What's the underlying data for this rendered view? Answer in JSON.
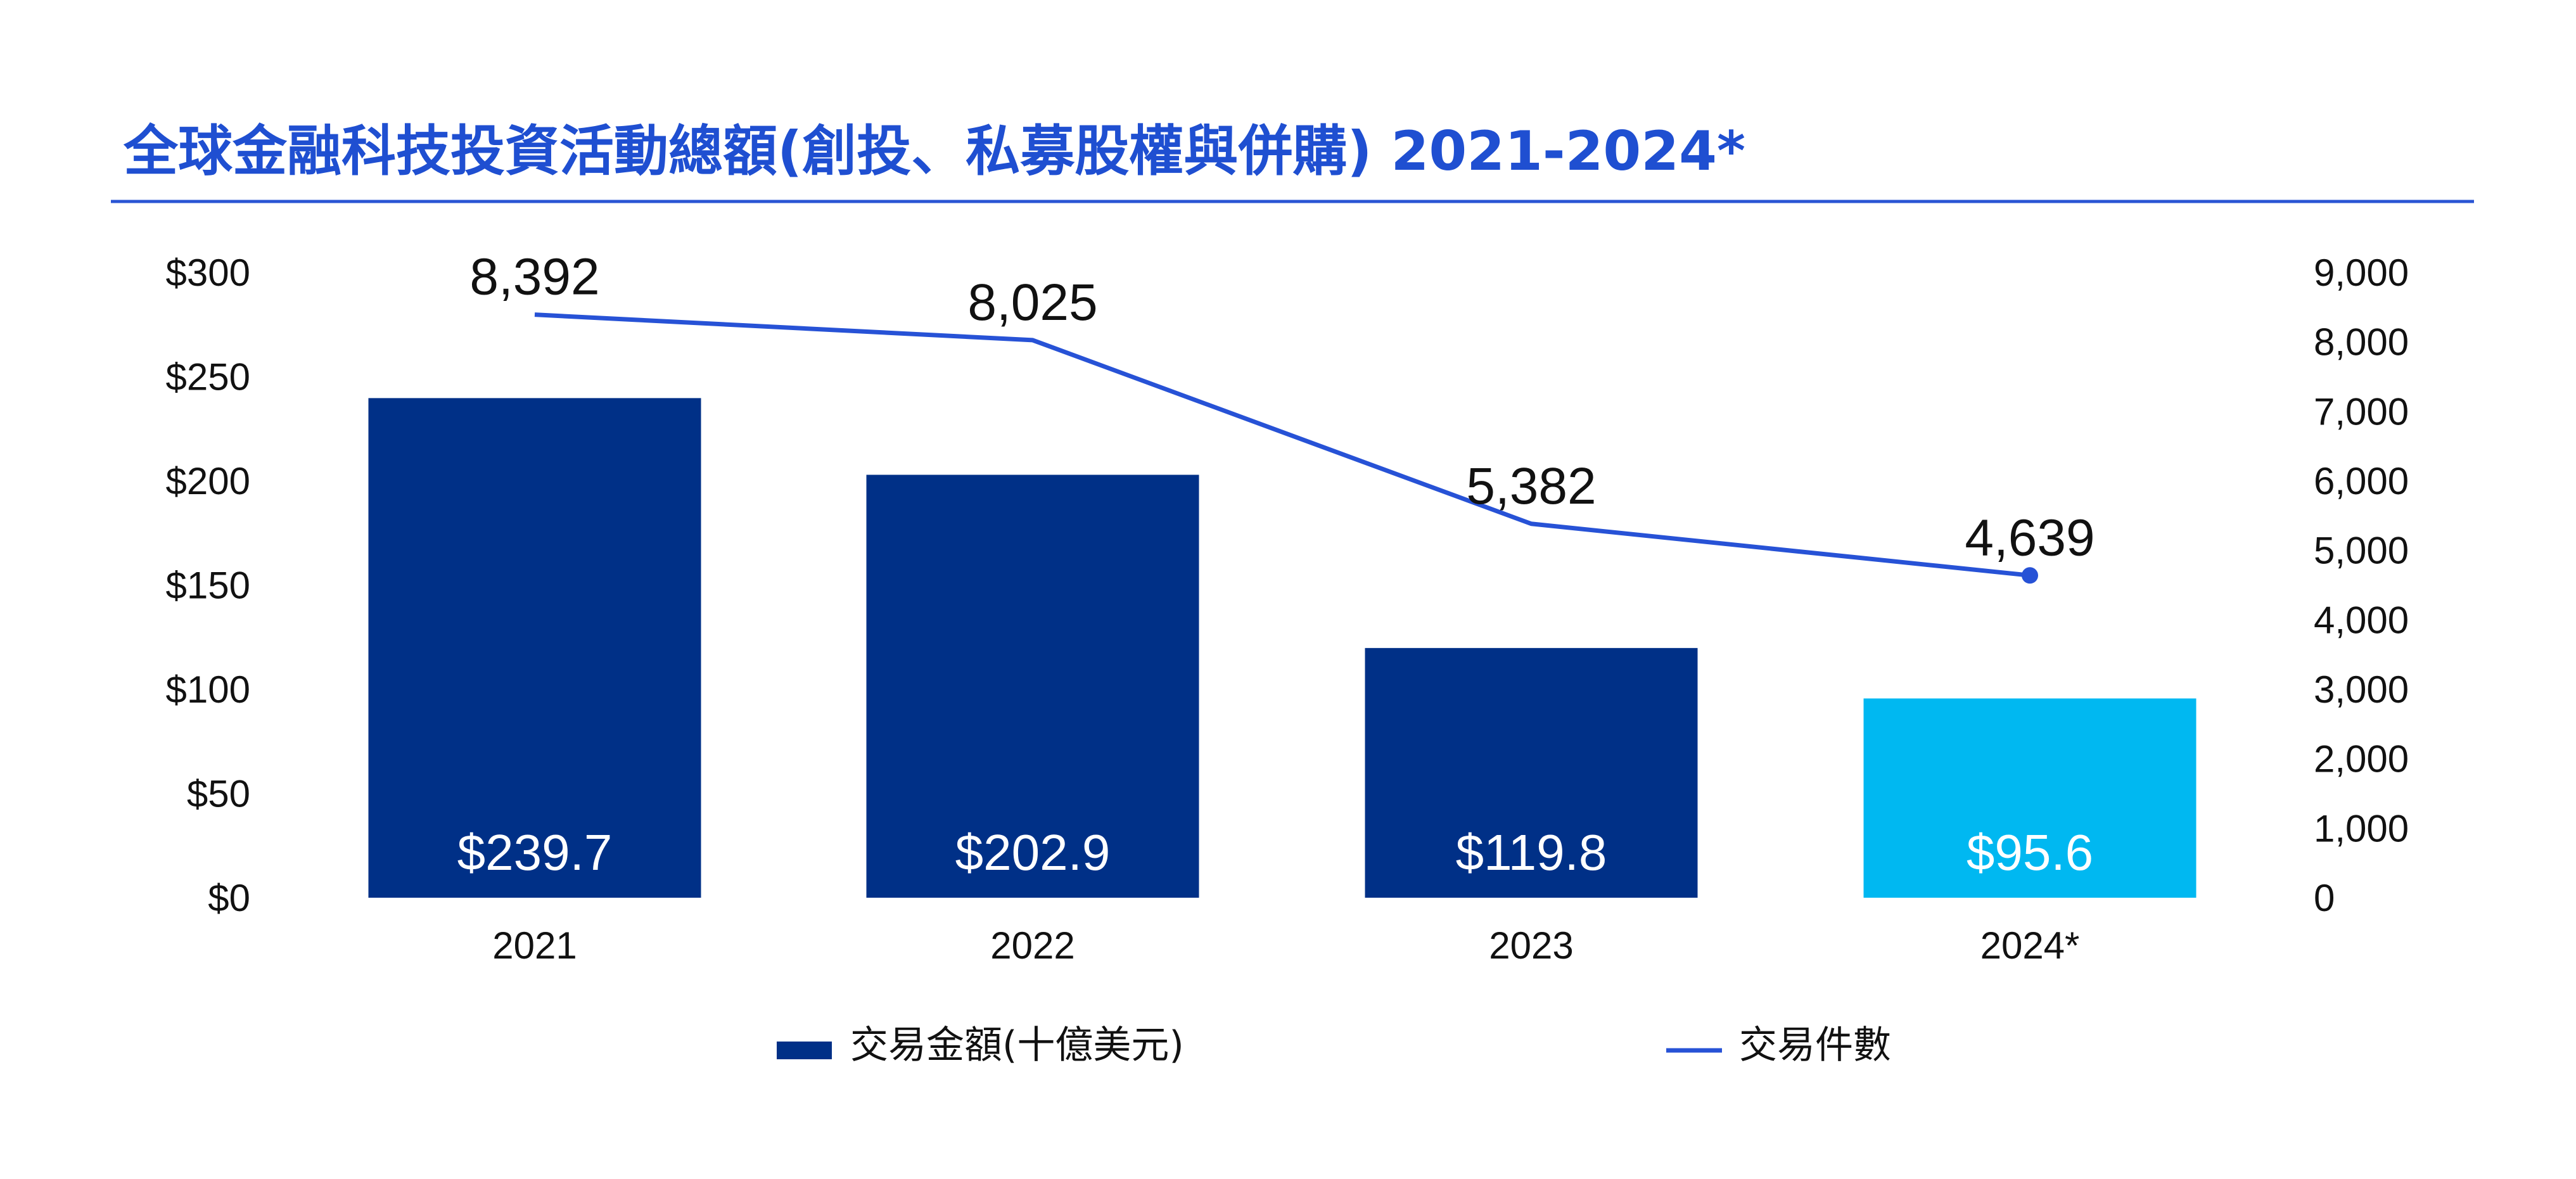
{
  "chart_data": {
    "type": "bar",
    "title": "全球金融科技投資活動總額(創投、私募股權與併購) 2021-2024*",
    "categories": [
      "2021",
      "2022",
      "2023",
      "2024*"
    ],
    "series": [
      {
        "name": "交易金額(十億美元)",
        "type": "bar",
        "axis": "left",
        "values": [
          239.7,
          202.9,
          119.8,
          95.6
        ],
        "labels": [
          "$239.7",
          "$202.9",
          "$119.8",
          "$95.6"
        ],
        "colors": [
          "#003087",
          "#003087",
          "#003087",
          "#00B8F1"
        ]
      },
      {
        "name": "交易件數",
        "type": "line",
        "axis": "right",
        "values": [
          8392,
          8025,
          5382,
          4639
        ],
        "labels": [
          "8,392",
          "8,025",
          "5,382",
          "4,639"
        ],
        "color": "#2752D6"
      }
    ],
    "y_left": {
      "range": [
        0,
        300
      ],
      "ticks": [
        "$0",
        "$50",
        "$100",
        "$150",
        "$200",
        "$250",
        "$300"
      ]
    },
    "y_right": {
      "range": [
        0,
        9000
      ],
      "ticks": [
        "0",
        "1,000",
        "2,000",
        "3,000",
        "4,000",
        "5,000",
        "6,000",
        "7,000",
        "8,000",
        "9,000"
      ]
    },
    "legend": {
      "position": "bottom",
      "items": [
        {
          "label": "交易金額(十億美元)",
          "kind": "bar",
          "color": "#003087"
        },
        {
          "label": "交易件數",
          "kind": "line",
          "color": "#2752D6"
        }
      ]
    },
    "grid": false,
    "colors": {
      "title": "#1F4FD1",
      "rule": "#2A55D4",
      "text": "#111111"
    }
  }
}
